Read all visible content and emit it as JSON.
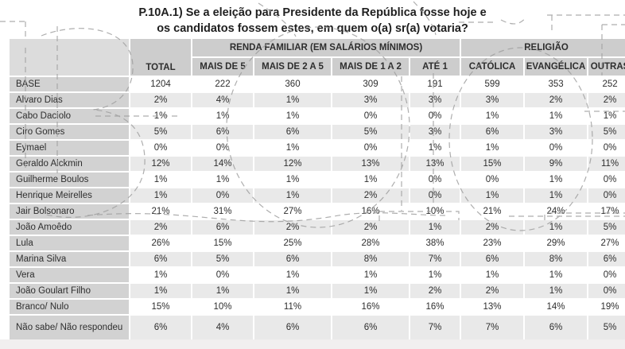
{
  "title": {
    "line1": "P.10A.1) Se a eleição para Presidente da República fosse hoje e",
    "line2": "os candidatos fossem estes, em quem o(a) sr(a) votaria?"
  },
  "table": {
    "total_header": "TOTAL",
    "groups": [
      "RENDA FAMILIAR (EM SALÁRIOS MÍNIMOS)",
      "RELIGIÃO"
    ],
    "sub_columns": [
      "MAIS DE 5",
      "MAIS DE 2 A 5",
      "MAIS DE 1 A 2",
      "ATÉ 1",
      "CATÓLICA",
      "EVANGÉLICA",
      "OUTRAS"
    ],
    "rows": [
      {
        "label": "BASE",
        "values": [
          "1204",
          "222",
          "360",
          "309",
          "191",
          "599",
          "353",
          "252"
        ]
      },
      {
        "label": "Alvaro Dias",
        "values": [
          "2%",
          "4%",
          "1%",
          "3%",
          "3%",
          "3%",
          "2%",
          "2%"
        ]
      },
      {
        "label": "Cabo Daciolo",
        "values": [
          "1%",
          "1%",
          "1%",
          "0%",
          "0%",
          "1%",
          "1%",
          "1%"
        ]
      },
      {
        "label": "Ciro Gomes",
        "values": [
          "5%",
          "6%",
          "6%",
          "5%",
          "3%",
          "6%",
          "3%",
          "5%"
        ]
      },
      {
        "label": "Eymael",
        "values": [
          "0%",
          "0%",
          "1%",
          "0%",
          "1%",
          "1%",
          "0%",
          "0%"
        ]
      },
      {
        "label": "Geraldo Alckmin",
        "values": [
          "12%",
          "14%",
          "12%",
          "13%",
          "13%",
          "15%",
          "9%",
          "11%"
        ]
      },
      {
        "label": "Guilherme Boulos",
        "values": [
          "1%",
          "1%",
          "1%",
          "1%",
          "0%",
          "0%",
          "1%",
          "0%"
        ]
      },
      {
        "label": "Henrique Meirelles",
        "values": [
          "1%",
          "0%",
          "1%",
          "2%",
          "0%",
          "1%",
          "1%",
          "0%"
        ]
      },
      {
        "label": "Jair Bolsonaro",
        "values": [
          "21%",
          "31%",
          "27%",
          "16%",
          "10%",
          "21%",
          "24%",
          "17%"
        ]
      },
      {
        "label": "João Amoêdo",
        "values": [
          "2%",
          "6%",
          "2%",
          "2%",
          "1%",
          "2%",
          "1%",
          "5%"
        ]
      },
      {
        "label": "Lula",
        "values": [
          "26%",
          "15%",
          "25%",
          "28%",
          "38%",
          "23%",
          "29%",
          "27%"
        ]
      },
      {
        "label": "Marina Silva",
        "values": [
          "6%",
          "5%",
          "6%",
          "8%",
          "7%",
          "6%",
          "8%",
          "6%"
        ]
      },
      {
        "label": "Vera",
        "values": [
          "1%",
          "0%",
          "1%",
          "1%",
          "1%",
          "1%",
          "1%",
          "0%"
        ]
      },
      {
        "label": "João Goulart Filho",
        "values": [
          "1%",
          "1%",
          "1%",
          "1%",
          "2%",
          "2%",
          "1%",
          "0%"
        ]
      },
      {
        "label": "Branco/ Nulo",
        "values": [
          "15%",
          "10%",
          "11%",
          "16%",
          "16%",
          "13%",
          "14%",
          "19%"
        ]
      },
      {
        "label": "Não sabe/ Não respondeu",
        "values": [
          "6%",
          "4%",
          "6%",
          "6%",
          "7%",
          "7%",
          "6%",
          "5%"
        ]
      }
    ]
  },
  "colors": {
    "header_bg": "#cdcdcd",
    "corner_bg": "#dcdcdc",
    "row_label_bg": "#d2d2d2",
    "alt_row_bg": "#e9e9e9",
    "row_bg": "#ffffff",
    "text": "#2e2e2e",
    "watermark_dash": "#a0a0a0"
  }
}
